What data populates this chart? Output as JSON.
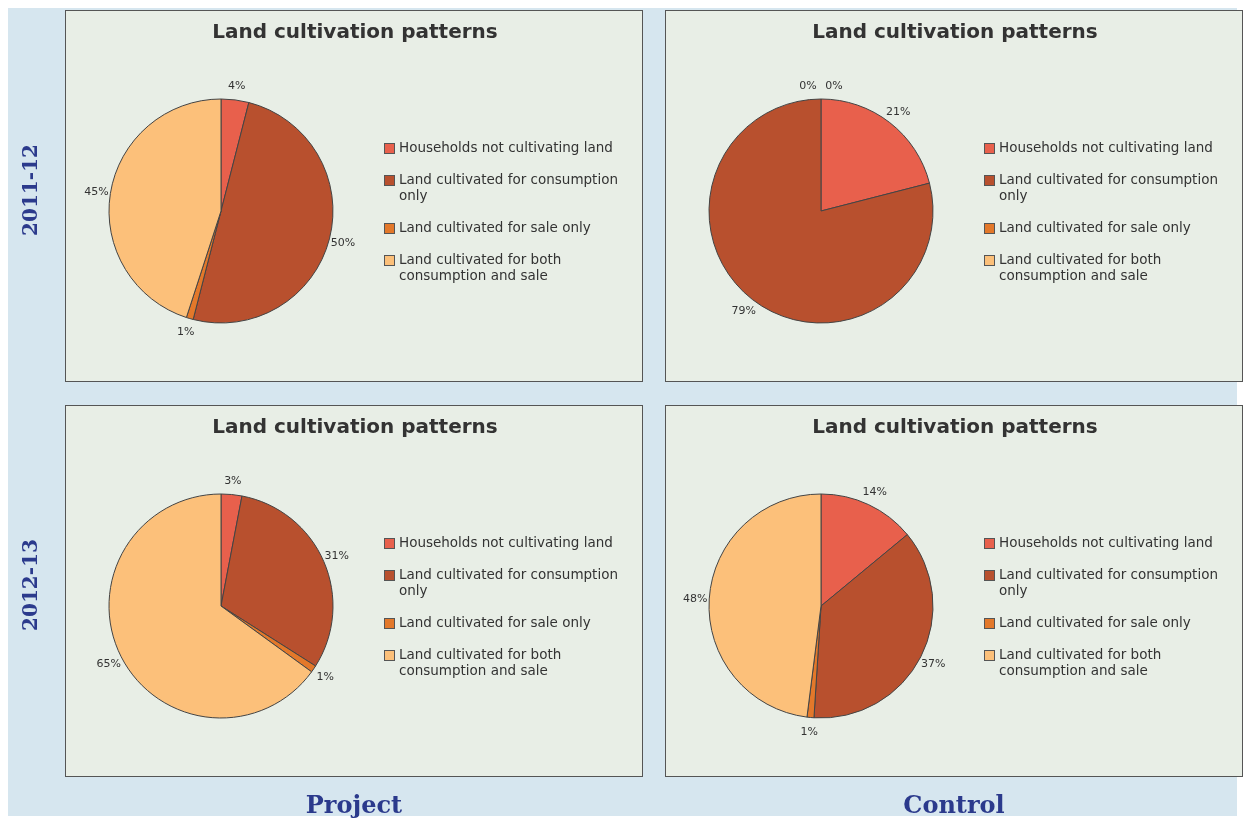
{
  "chart_data": [
    {
      "type": "pie",
      "title": "Land cultivation patterns",
      "categories": [
        "Households not cultivating land",
        "Land cultivated for consumption only",
        "Land cultivated for sale only",
        "Land cultivated for both consumption and sale"
      ],
      "values": [
        4,
        50,
        1,
        45
      ],
      "value_labels": [
        "4%",
        "50%",
        "1%",
        "45%"
      ],
      "colors": [
        "#e8604c",
        "#b8502e",
        "#e3782a",
        "#fcc07a"
      ],
      "legend": "right",
      "annotations": [
        "2011-12"
      ]
    },
    {
      "type": "pie",
      "title": "Land cultivation patterns",
      "categories": [
        "Households not cultivating land",
        "Land cultivated for consumption only",
        "Land cultivated for sale only",
        "Land cultivated for both consumption and sale"
      ],
      "values": [
        21,
        79,
        0,
        0
      ],
      "value_labels": [
        "21%",
        "79%",
        "0%",
        "0%"
      ],
      "colors": [
        "#e8604c",
        "#b8502e",
        "#e3782a",
        "#fcc07a"
      ],
      "legend": "right"
    },
    {
      "type": "pie",
      "title": "Land cultivation patterns",
      "categories": [
        "Households not cultivating land",
        "Land cultivated for consumption only",
        "Land cultivated for sale only",
        "Land cultivated for both consumption and sale"
      ],
      "values": [
        3,
        31,
        1,
        65
      ],
      "value_labels": [
        "3%",
        "31%",
        "1%",
        "65%"
      ],
      "colors": [
        "#e8604c",
        "#b8502e",
        "#e3782a",
        "#fcc07a"
      ],
      "legend": "right",
      "annotations": [
        "2012-13",
        "Project"
      ]
    },
    {
      "type": "pie",
      "title": "Land cultivation patterns",
      "categories": [
        "Households not cultivating land",
        "Land cultivated for consumption only",
        "Land cultivated for sale only",
        "Land cultivated for both consumption and sale"
      ],
      "values": [
        14,
        37,
        1,
        48
      ],
      "value_labels": [
        "14%",
        "37%",
        "1%",
        "48%"
      ],
      "colors": [
        "#e8604c",
        "#b8502e",
        "#e3782a",
        "#fcc07a"
      ],
      "legend": "right",
      "annotations": [
        "Control"
      ]
    }
  ]
}
